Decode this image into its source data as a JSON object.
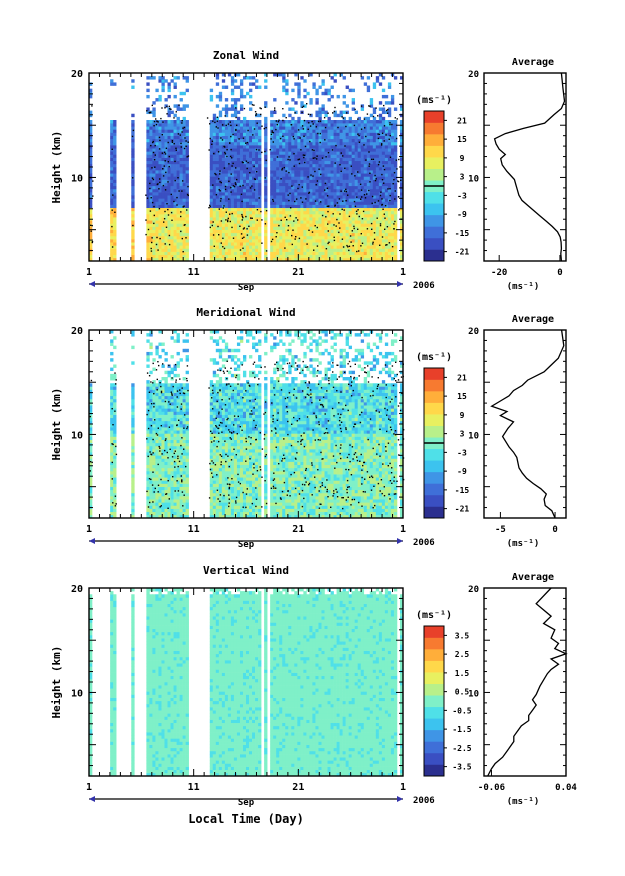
{
  "figure": {
    "xlabel": "Local Time (Day)",
    "month": "Sep",
    "year": "2006",
    "ylabel": "Height (km)",
    "units": "(ms⁻¹)",
    "average_title": "Average"
  },
  "chart_data": [
    {
      "type": "heatmap",
      "title": "Zonal Wind",
      "ylabel": "Height (km)",
      "x_ticks": [
        "1",
        "11",
        "21",
        "1"
      ],
      "y_ticks": [
        "10",
        "20"
      ],
      "ylim": [
        2,
        20
      ],
      "colorbar": {
        "ticks": [
          "21",
          "15",
          "9",
          "3",
          "-3",
          "-9",
          "-15",
          "-21"
        ],
        "range": [
          -24,
          24
        ],
        "zero_line": true,
        "colors": [
          "#2b2f8f",
          "#3a4fc2",
          "#3f6fd8",
          "#3f95e6",
          "#3cc3ef",
          "#4fe0e8",
          "#7ff0c8",
          "#b8f08a",
          "#e8f060",
          "#ffd84a",
          "#ffae3a",
          "#f77a30",
          "#e8402a"
        ]
      },
      "unit": "(ms⁻¹)",
      "month": "Sep",
      "year": "2006"
    },
    {
      "type": "line",
      "title": "Average",
      "xlabel": "(ms⁻¹)",
      "x_ticks": [
        "-20",
        "0"
      ],
      "y_ticks": [
        "10",
        "20"
      ],
      "xlim": [
        -25,
        2
      ],
      "ylim": [
        2,
        20
      ],
      "series": [
        {
          "x": [
            0.5,
            0.3,
            0.5,
            0.4,
            0.1,
            -0.8,
            -2.5,
            -4.5,
            -6.5,
            -8.5,
            -10.5,
            -12.5,
            -13.5,
            -14.0,
            -14.5,
            -15.0,
            -17.5,
            -19.0,
            -19.5,
            -18.0,
            -20.0,
            -21.0,
            -21.5,
            -18.0,
            -12.0,
            -5.0,
            -2.0,
            0.5,
            1.5,
            1.0,
            0.5
          ],
          "y": [
            2,
            2.7,
            3.2,
            3.8,
            4.3,
            4.8,
            5.3,
            5.8,
            6.3,
            6.8,
            7.3,
            7.8,
            8.3,
            8.8,
            9.3,
            9.8,
            10.6,
            11.2,
            11.8,
            12.2,
            12.7,
            13.2,
            13.7,
            14.2,
            14.7,
            15.2,
            16.0,
            16.6,
            17.3,
            18.5,
            20.0
          ]
        }
      ]
    },
    {
      "type": "heatmap",
      "title": "Meridional Wind",
      "ylabel": "Height (km)",
      "x_ticks": [
        "1",
        "11",
        "21",
        "1"
      ],
      "y_ticks": [
        "10",
        "20"
      ],
      "ylim": [
        2,
        20
      ],
      "colorbar": {
        "ticks": [
          "21",
          "15",
          "9",
          "3",
          "-3",
          "-9",
          "-15",
          "-21"
        ],
        "range": [
          -24,
          24
        ],
        "zero_line": true,
        "colors": [
          "#2b2f8f",
          "#3a4fc2",
          "#3f6fd8",
          "#3f95e6",
          "#3cc3ef",
          "#4fe0e8",
          "#7ff0c8",
          "#b8f08a",
          "#e8f060",
          "#ffd84a",
          "#ffae3a",
          "#f77a30",
          "#e8402a"
        ]
      },
      "unit": "(ms⁻¹)",
      "month": "Sep",
      "year": "2006"
    },
    {
      "type": "line",
      "title": "Average",
      "xlabel": "(ms⁻¹)",
      "x_ticks": [
        "-5",
        "0"
      ],
      "y_ticks": [
        "10",
        "20"
      ],
      "xlim": [
        -6.5,
        1
      ],
      "ylim": [
        2,
        20
      ],
      "series": [
        {
          "x": [
            0.0,
            -0.3,
            -0.9,
            -1.0,
            -0.8,
            -1.3,
            -2.0,
            -2.6,
            -3.0,
            -3.3,
            -3.4,
            -3.5,
            -3.8,
            -4.2,
            -4.5,
            -4.8,
            -4.3,
            -3.8,
            -5.0,
            -4.4,
            -5.8,
            -5.0,
            -4.2,
            -3.8,
            -3.0,
            -2.5,
            -1.0,
            -0.4,
            0.3,
            0.8,
            0.6
          ],
          "y": [
            2,
            2.7,
            3.2,
            3.8,
            4.3,
            4.8,
            5.3,
            5.8,
            6.3,
            6.8,
            7.3,
            7.8,
            8.3,
            8.8,
            9.3,
            9.8,
            10.6,
            11.2,
            11.8,
            12.2,
            12.7,
            13.2,
            13.7,
            14.2,
            14.7,
            15.2,
            16.0,
            16.6,
            17.3,
            18.5,
            20.0
          ]
        }
      ]
    },
    {
      "type": "heatmap",
      "title": "Vertical Wind",
      "ylabel": "Height (km)",
      "xlabel": "Local Time (Day)",
      "x_ticks": [
        "1",
        "11",
        "21",
        "1"
      ],
      "y_ticks": [
        "10",
        "20"
      ],
      "ylim": [
        2,
        20
      ],
      "colorbar": {
        "ticks": [
          "3.5",
          "2.5",
          "1.5",
          "0.5",
          "-0.5",
          "-1.5",
          "-2.5",
          "-3.5"
        ],
        "range": [
          -4,
          4
        ],
        "zero_line": false,
        "colors": [
          "#2b2f8f",
          "#3a4fc2",
          "#3f6fd8",
          "#3f95e6",
          "#3cc3ef",
          "#4fe0e8",
          "#7ff0c8",
          "#b8f08a",
          "#e8f060",
          "#ffd84a",
          "#ffae3a",
          "#f77a30",
          "#e8402a"
        ]
      },
      "unit": "(ms⁻¹)",
      "month": "Sep",
      "year": "2006"
    },
    {
      "type": "line",
      "title": "Average",
      "xlabel": "(ms⁻¹)",
      "x_ticks": [
        "-0.06",
        "0.04"
      ],
      "y_ticks": [
        "10",
        "20"
      ],
      "xlim": [
        -0.07,
        0.04
      ],
      "ylim": [
        2,
        20
      ],
      "series": [
        {
          "x": [
            -0.065,
            -0.06,
            -0.055,
            -0.045,
            -0.04,
            -0.035,
            -0.03,
            -0.03,
            -0.025,
            -0.02,
            -0.01,
            -0.01,
            -0.005,
            0.0,
            -0.005,
            0.0,
            0.005,
            0.01,
            0.015,
            0.02,
            0.03,
            0.02,
            0.04,
            0.025,
            0.03,
            0.02,
            0.025,
            0.01,
            0.02,
            0.0,
            0.02
          ],
          "y": [
            2,
            2.7,
            3.2,
            3.8,
            4.3,
            4.8,
            5.3,
            5.8,
            6.3,
            6.8,
            7.3,
            7.8,
            8.3,
            8.8,
            9.3,
            9.8,
            10.6,
            11.2,
            11.8,
            12.2,
            12.7,
            13.2,
            13.7,
            14.2,
            14.7,
            15.2,
            16.0,
            16.6,
            17.3,
            18.5,
            20.0
          ]
        }
      ]
    }
  ]
}
